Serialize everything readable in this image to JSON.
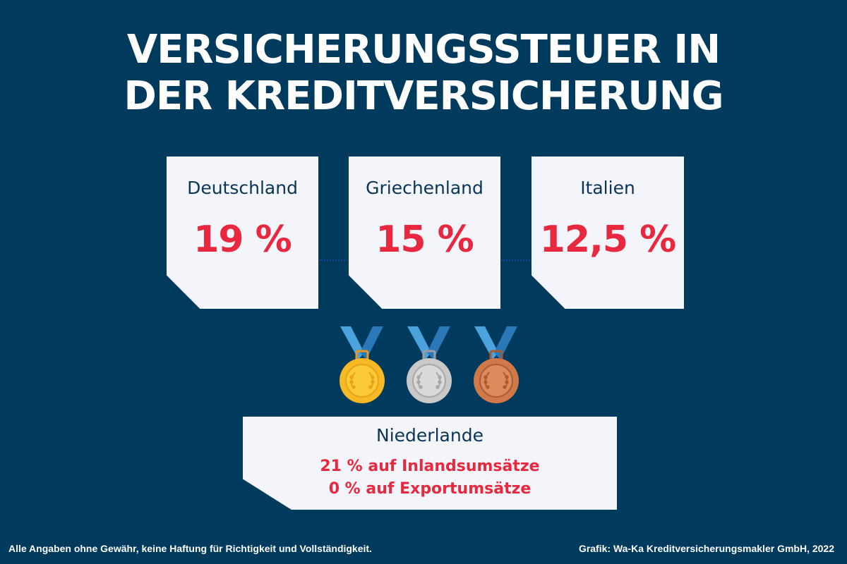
{
  "title": {
    "line1": "VERSICHERUNGSSTEUER IN",
    "line2": "DER KREDITVERSICHERUNG"
  },
  "cards": [
    {
      "country": "Deutschland",
      "rate": "19 %"
    },
    {
      "country": "Griechenland",
      "rate": "15 %"
    },
    {
      "country": "Italien",
      "rate": "12,5 %"
    }
  ],
  "medals": [
    {
      "icon": "gold-medal-icon",
      "color": "#f7b926"
    },
    {
      "icon": "silver-medal-icon",
      "color": "#c9c9c9"
    },
    {
      "icon": "bronze-medal-icon",
      "color": "#d1784a"
    }
  ],
  "netherlands": {
    "country": "Niederlande",
    "line1": "21 % auf Inlandsumsätze",
    "line2": "0 % auf Exportumsätze"
  },
  "footer": {
    "disclaimer": "Alle Angaben ohne Gewähr, keine Haftung für Richtigkeit und Vollständigkeit.",
    "credit": "Grafik: Wa-Ka Kreditversicherungsmakler GmbH, 2022"
  },
  "colors": {
    "background": "#003a5d",
    "card": "#f4f5fa",
    "accent_red": "#e8283f",
    "text_dark": "#0b3556",
    "ribbon_light": "#4ba3de",
    "ribbon_dark": "#2b78b8"
  }
}
